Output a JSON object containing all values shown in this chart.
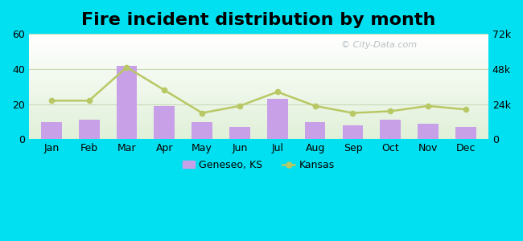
{
  "title": "Fire incident distribution by month",
  "months": [
    "Jan",
    "Feb",
    "Mar",
    "Apr",
    "May",
    "Jun",
    "Jul",
    "Aug",
    "Sep",
    "Oct",
    "Nov",
    "Dec"
  ],
  "geneseo_values": [
    10,
    11,
    42,
    19,
    10,
    7,
    23,
    10,
    8,
    11,
    9,
    7
  ],
  "kansas_values": [
    22,
    22,
    41,
    28,
    15,
    19,
    27,
    19,
    15,
    16,
    19,
    17
  ],
  "bar_color": "#c8a0e8",
  "line_color": "#b8c864",
  "ylim_left": [
    0,
    60
  ],
  "yticks_left": [
    0,
    20,
    40,
    60
  ],
  "ytick_labels_right": [
    "0",
    "24k",
    "48k",
    "72k"
  ],
  "outer_bg": "#00e0f0",
  "title_fontsize": 16,
  "legend_geneseo": "Geneseo, KS",
  "legend_kansas": "Kansas",
  "watermark": "© City-Data.com"
}
